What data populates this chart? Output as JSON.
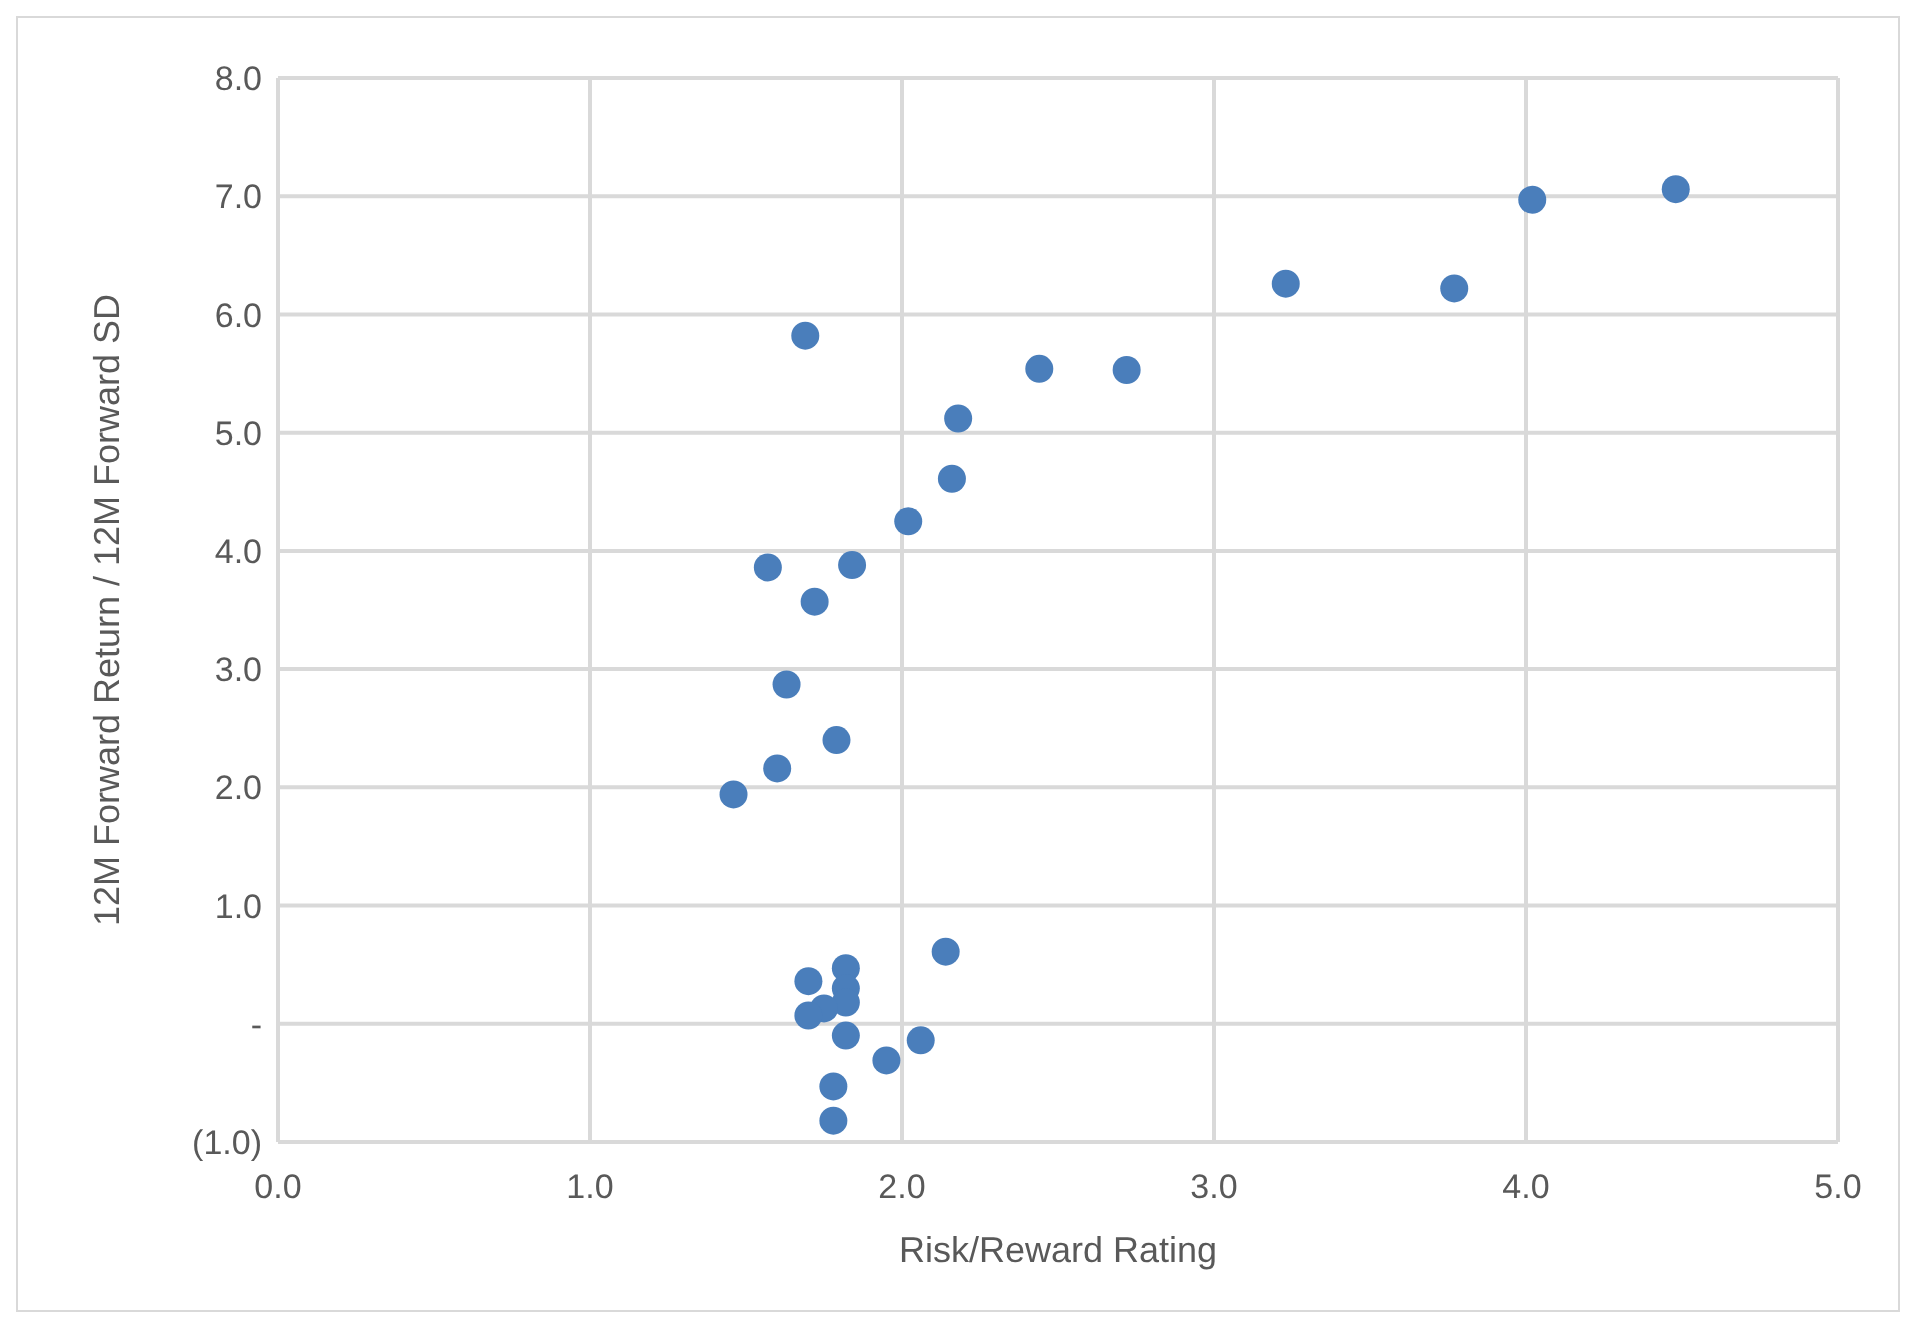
{
  "chart_data": {
    "type": "scatter",
    "xlabel": "Risk/Reward Rating",
    "ylabel": "12M Forward Return / 12M Forward SD",
    "x": [
      1.69,
      3.23,
      3.77,
      4.02,
      4.48,
      2.44,
      2.72,
      2.18,
      2.16,
      2.02,
      1.57,
      1.84,
      1.72,
      1.63,
      1.79,
      1.6,
      1.46,
      2.14,
      1.82,
      1.7,
      1.82,
      1.82,
      1.75,
      1.7,
      1.82,
      2.06,
      1.95,
      1.78,
      1.78
    ],
    "series": [
      {
        "color": "#4a7ebb",
        "values": [
          5.82,
          6.26,
          6.22,
          6.97,
          7.06,
          5.54,
          5.53,
          5.12,
          4.61,
          4.25,
          3.86,
          3.88,
          3.57,
          2.87,
          2.4,
          2.16,
          1.94,
          0.61,
          0.47,
          0.36,
          0.3,
          0.18,
          0.13,
          0.07,
          -0.1,
          -0.14,
          -0.31,
          -0.53,
          -0.82
        ]
      }
    ],
    "xlim": [
      0,
      5
    ],
    "xticks": [
      {
        "value": 0,
        "label": "0.0"
      },
      {
        "value": 1,
        "label": "1.0"
      },
      {
        "value": 2,
        "label": "2.0"
      },
      {
        "value": 3,
        "label": "3.0"
      },
      {
        "value": 4,
        "label": "4.0"
      },
      {
        "value": 5,
        "label": "5.0"
      }
    ],
    "ylim": [
      -1,
      8
    ],
    "yticks": [
      {
        "value": -1,
        "label": "(1.0)"
      },
      {
        "value": 0,
        "label": "-"
      },
      {
        "value": 1,
        "label": "1.0"
      },
      {
        "value": 2,
        "label": "2.0"
      },
      {
        "value": 3,
        "label": "3.0"
      },
      {
        "value": 4,
        "label": "4.0"
      },
      {
        "value": 5,
        "label": "5.0"
      },
      {
        "value": 6,
        "label": "6.0"
      },
      {
        "value": 7,
        "label": "7.0"
      },
      {
        "value": 8,
        "label": "8.0"
      }
    ],
    "grid": true,
    "marker": "circle",
    "legend": false
  }
}
